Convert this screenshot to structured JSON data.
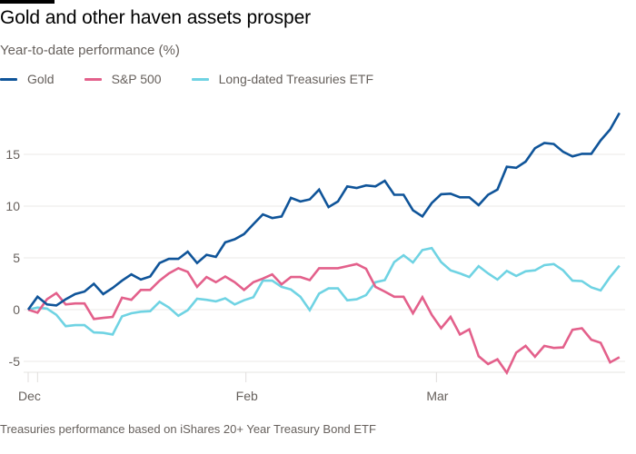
{
  "header": {
    "title": "Gold and other haven assets prosper",
    "subtitle": "Year-to-date performance (%)"
  },
  "legend": [
    {
      "label": "Gold",
      "color": "#0f5499"
    },
    {
      "label": "S&P 500",
      "color": "#e3608b"
    },
    {
      "label": "Long-dated Treasuries ETF",
      "color": "#6fd3e3"
    }
  ],
  "footnote": "Treasuries performance based on iShares 20+ Year Treasury Bond ETF",
  "chart_data": {
    "type": "line",
    "title": "Gold and other haven assets prosper",
    "subtitle": "Year-to-date performance (%)",
    "xlabel": "",
    "ylabel": "Year-to-date performance (%)",
    "x": "trading-day index 0..63 (Dec 31 to late March)",
    "xlim": [
      0,
      63
    ],
    "ylim": [
      -6.5,
      19.5
    ],
    "yticks": [
      15,
      10,
      5,
      0,
      -5
    ],
    "ytick_labels": [
      "15",
      "10",
      "5",
      "0",
      "-5"
    ],
    "xticks": [
      {
        "label": "Dec",
        "pos": 0
      },
      {
        "label": "",
        "pos": 1
      },
      {
        "label": "Feb",
        "pos": 23.2
      },
      {
        "label": "Mar",
        "pos": 43.5
      }
    ],
    "grid": true,
    "legend_position": "top-left",
    "series": [
      {
        "name": "Gold",
        "color": "#0f5499",
        "values": [
          0,
          1.25,
          0.5,
          0.4,
          1.0,
          1.5,
          1.75,
          2.5,
          1.5,
          2.1,
          2.8,
          3.4,
          2.9,
          3.2,
          4.5,
          4.9,
          4.9,
          5.6,
          4.5,
          5.3,
          5.1,
          6.5,
          6.8,
          7.3,
          8.25,
          9.2,
          8.85,
          9.0,
          10.8,
          10.45,
          10.65,
          11.6,
          9.9,
          10.45,
          11.9,
          11.75,
          12.0,
          11.9,
          12.45,
          11.1,
          11.1,
          9.6,
          9.0,
          10.3,
          11.15,
          11.2,
          10.85,
          10.85,
          10.1,
          11.1,
          11.6,
          13.8,
          13.7,
          14.3,
          15.6,
          16.1,
          16.0,
          15.25,
          14.8,
          15.05,
          15.05,
          16.35,
          17.4,
          19.0
        ]
      },
      {
        "name": "S&P 500",
        "color": "#e3608b",
        "values": [
          0,
          -0.3,
          1.0,
          1.6,
          0.5,
          0.6,
          0.6,
          -0.9,
          -0.8,
          -0.7,
          1.15,
          0.95,
          1.9,
          1.9,
          2.8,
          3.5,
          4.0,
          3.65,
          2.2,
          3.15,
          2.65,
          3.2,
          2.65,
          1.9,
          2.65,
          3.0,
          3.4,
          2.45,
          3.15,
          3.15,
          2.85,
          4.0,
          4.0,
          4.0,
          4.2,
          4.4,
          3.95,
          2.2,
          1.75,
          1.25,
          1.25,
          -0.35,
          1.2,
          -0.5,
          -1.8,
          -0.7,
          -2.4,
          -1.9,
          -4.5,
          -5.25,
          -4.8,
          -6.1,
          -4.15,
          -3.5,
          -4.55,
          -3.5,
          -3.7,
          -3.65,
          -1.95,
          -1.8,
          -2.9,
          -3.2,
          -5.1,
          -4.6
        ]
      },
      {
        "name": "Long-dated Treasuries ETF",
        "color": "#6fd3e3",
        "values": [
          0,
          0.2,
          0.1,
          -0.5,
          -1.6,
          -1.5,
          -1.5,
          -2.2,
          -2.25,
          -2.4,
          -0.65,
          -0.35,
          -0.2,
          -0.15,
          0.75,
          0.2,
          -0.6,
          -0.05,
          1.05,
          0.95,
          0.8,
          1.1,
          0.5,
          0.9,
          1.2,
          2.8,
          2.8,
          2.2,
          1.95,
          1.25,
          -0.05,
          1.55,
          2.05,
          2.05,
          0.9,
          1.0,
          1.4,
          2.65,
          2.85,
          4.6,
          5.25,
          4.55,
          5.75,
          5.95,
          4.6,
          3.8,
          3.5,
          3.15,
          4.2,
          3.5,
          2.9,
          3.75,
          3.25,
          3.7,
          3.8,
          4.3,
          4.4,
          3.8,
          2.8,
          2.75,
          2.15,
          1.85,
          3.15,
          4.25
        ]
      }
    ]
  }
}
